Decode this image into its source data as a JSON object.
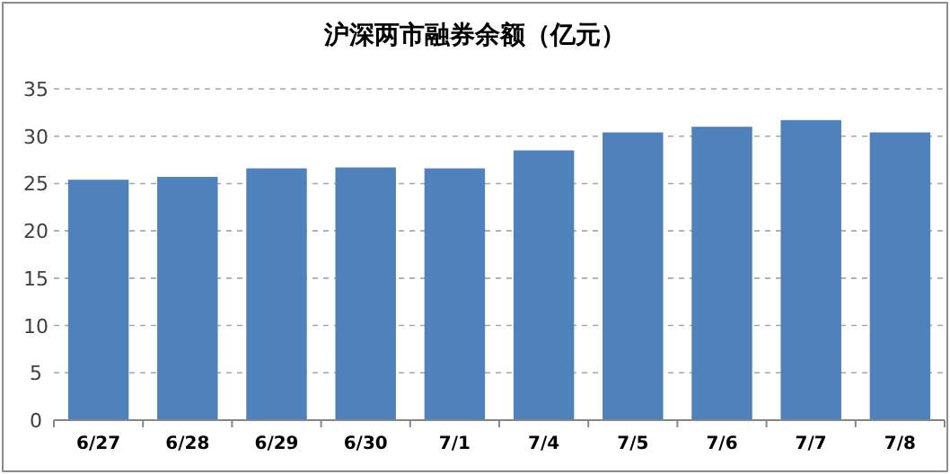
{
  "chart_data": {
    "type": "bar",
    "title": "沪深两市融券余额（亿元）",
    "categories": [
      "6/27",
      "6/28",
      "6/29",
      "6/30",
      "7/1",
      "7/4",
      "7/5",
      "7/6",
      "7/7",
      "7/8"
    ],
    "values": [
      25.4,
      25.7,
      26.6,
      26.7,
      26.6,
      28.5,
      30.4,
      31.0,
      31.7,
      30.4
    ],
    "color": "#4f81bd",
    "ylim": [
      0,
      35
    ],
    "yticks": [
      0,
      5,
      10,
      15,
      20,
      25,
      30,
      35
    ],
    "grid": "y"
  }
}
